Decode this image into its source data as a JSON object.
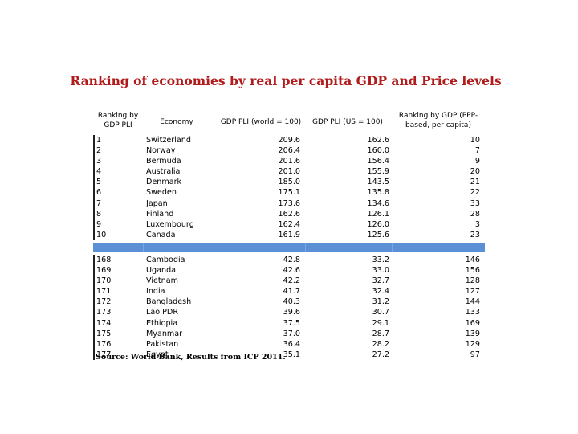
{
  "title": "Ranking of economies by real per capita GDP and Price levels",
  "table": {
    "headers": {
      "rank": "Ranking by GDP PLI",
      "economy": "Economy",
      "pli_world": "GDP PLI (world = 100)",
      "pli_us": "GDP PLI (US = 100)",
      "rank_ppp": "Ranking by GDP (PPP-based, per capita)"
    },
    "top_rows": [
      {
        "rank": "1",
        "economy": "Switzerland",
        "pli_world": "209.6",
        "pli_us": "162.6",
        "rank_ppp": "10"
      },
      {
        "rank": "2",
        "economy": "Norway",
        "pli_world": "206.4",
        "pli_us": "160.0",
        "rank_ppp": "7"
      },
      {
        "rank": "3",
        "economy": "Bermuda",
        "pli_world": "201.6",
        "pli_us": "156.4",
        "rank_ppp": "9"
      },
      {
        "rank": "4",
        "economy": "Australia",
        "pli_world": "201.0",
        "pli_us": "155.9",
        "rank_ppp": "20"
      },
      {
        "rank": "5",
        "economy": "Denmark",
        "pli_world": "185.0",
        "pli_us": "143.5",
        "rank_ppp": "21"
      },
      {
        "rank": "6",
        "economy": "Sweden",
        "pli_world": "175.1",
        "pli_us": "135.8",
        "rank_ppp": "22"
      },
      {
        "rank": "7",
        "economy": "Japan",
        "pli_world": "173.6",
        "pli_us": "134.6",
        "rank_ppp": "33"
      },
      {
        "rank": "8",
        "economy": "Finland",
        "pli_world": "162.6",
        "pli_us": "126.1",
        "rank_ppp": "28"
      },
      {
        "rank": "9",
        "economy": "Luxembourg",
        "pli_world": "162.4",
        "pli_us": "126.0",
        "rank_ppp": "3"
      },
      {
        "rank": "10",
        "economy": "Canada",
        "pli_world": "161.9",
        "pli_us": "125.6",
        "rank_ppp": "23"
      }
    ],
    "bottom_rows": [
      {
        "rank": "168",
        "economy": "Cambodia",
        "pli_world": "42.8",
        "pli_us": "33.2",
        "rank_ppp": "146"
      },
      {
        "rank": "169",
        "economy": "Uganda",
        "pli_world": "42.6",
        "pli_us": "33.0",
        "rank_ppp": "156"
      },
      {
        "rank": "170",
        "economy": "Vietnam",
        "pli_world": "42.2",
        "pli_us": "32.7",
        "rank_ppp": "128"
      },
      {
        "rank": "171",
        "economy": "India",
        "pli_world": "41.7",
        "pli_us": "32.4",
        "rank_ppp": "127"
      },
      {
        "rank": "172",
        "economy": "Bangladesh",
        "pli_world": "40.3",
        "pli_us": "31.2",
        "rank_ppp": "144"
      },
      {
        "rank": "173",
        "economy": "Lao PDR",
        "pli_world": "39.6",
        "pli_us": "30.7",
        "rank_ppp": "133"
      },
      {
        "rank": "174",
        "economy": "Ethiopia",
        "pli_world": "37.5",
        "pli_us": "29.1",
        "rank_ppp": "169"
      },
      {
        "rank": "175",
        "economy": "Myanmar",
        "pli_world": "37.0",
        "pli_us": "28.7",
        "rank_ppp": "139"
      },
      {
        "rank": "176",
        "economy": "Pakistan",
        "pli_world": "36.4",
        "pli_us": "28.2",
        "rank_ppp": "129"
      },
      {
        "rank": "177",
        "economy": "Egypt",
        "pli_world": "35.1",
        "pli_us": "27.2",
        "rank_ppp": "97"
      }
    ]
  },
  "source": "Source: World Bank, Results from ICP 2011.",
  "colors": {
    "title": "#b01c1c",
    "separator_band": "#5b8fd6"
  }
}
